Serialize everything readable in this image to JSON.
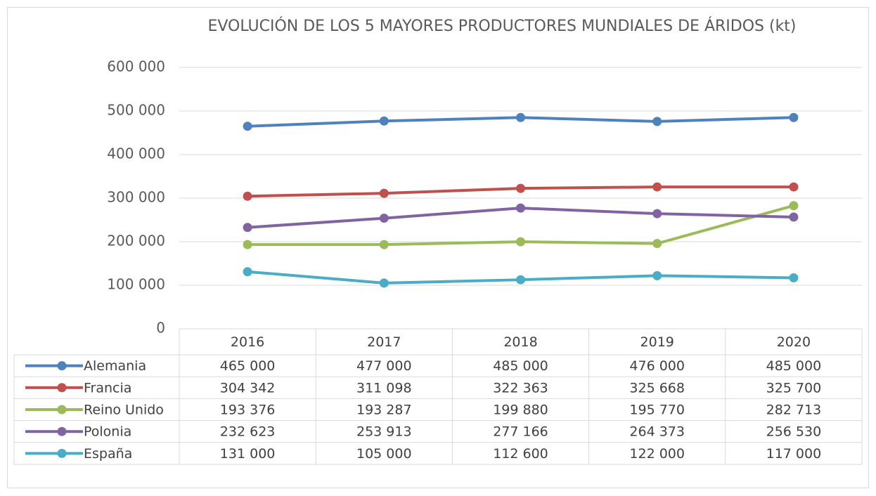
{
  "chart_data": {
    "type": "line",
    "title": "EVOLUCIÓN DE LOS 5 MAYORES PRODUCTORES MUNDIALES DE ÁRIDOS (kt)",
    "categories": [
      "2016",
      "2017",
      "2018",
      "2019",
      "2020"
    ],
    "series": [
      {
        "name": "Alemania",
        "color": "#4f81bd",
        "values": [
          465000,
          477000,
          485000,
          476000,
          485000
        ],
        "value_labels": [
          "465 000",
          "477 000",
          "485 000",
          "476 000",
          "485 000"
        ]
      },
      {
        "name": "Francia",
        "color": "#c0504d",
        "values": [
          304342,
          311098,
          322363,
          325668,
          325700
        ],
        "value_labels": [
          "304 342",
          "311 098",
          "322 363",
          "325 668",
          "325 700"
        ]
      },
      {
        "name": "Reino Unido",
        "color": "#9bbb59",
        "values": [
          193376,
          193287,
          199880,
          195770,
          282713
        ],
        "value_labels": [
          "193 376",
          "193 287",
          "199 880",
          "195 770",
          "282 713"
        ]
      },
      {
        "name": "Polonia",
        "color": "#8064a2",
        "values": [
          232623,
          253913,
          277166,
          264373,
          256530
        ],
        "value_labels": [
          "232 623",
          "253 913",
          "277 166",
          "264 373",
          "256 530"
        ]
      },
      {
        "name": "España",
        "color": "#4bacc6",
        "values": [
          131000,
          105000,
          112600,
          122000,
          117000
        ],
        "value_labels": [
          "131 000",
          "105 000",
          "112 600",
          "122 000",
          "117 000"
        ]
      }
    ],
    "ylim": [
      0,
      600000
    ],
    "yticks": [
      0,
      {
        "value": 100000,
        "label": "100 000"
      },
      {
        "value": 200000,
        "label": "200 000"
      },
      {
        "value": 300000,
        "label": "300 000"
      },
      {
        "value": 400000,
        "label": "400 000"
      },
      {
        "value": 500000,
        "label": "500 000"
      },
      {
        "value": 600000,
        "label": "600 000"
      }
    ],
    "grid": true
  }
}
